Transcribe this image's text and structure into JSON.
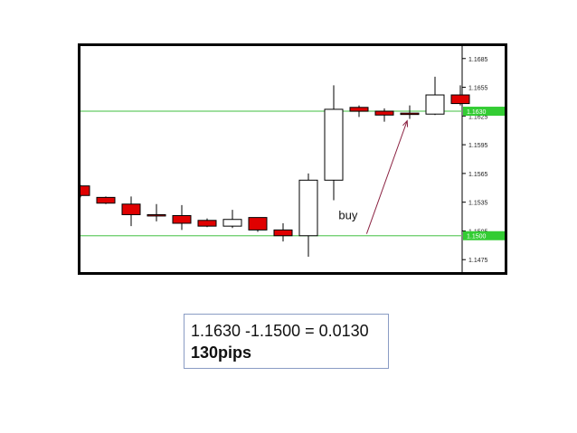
{
  "chart_data": {
    "type": "candlestick",
    "instrument": "",
    "ylim": [
      1.1462,
      1.1698
    ],
    "y_ticks": [
      "1.1685",
      "1.1655",
      "1.1625",
      "1.1595",
      "1.1565",
      "1.1535",
      "1.1505",
      "1.1475"
    ],
    "y_tick_values": [
      1.1685,
      1.1655,
      1.1625,
      1.1595,
      1.1565,
      1.1535,
      1.1505,
      1.1475
    ],
    "candles": [
      {
        "open": 1.1552,
        "high": 1.1553,
        "low": 1.154,
        "close": 1.1542
      },
      {
        "open": 1.154,
        "high": 1.1541,
        "low": 1.1533,
        "close": 1.1534
      },
      {
        "open": 1.1533,
        "high": 1.1541,
        "low": 1.151,
        "close": 1.1522
      },
      {
        "open": 1.1522,
        "high": 1.1533,
        "low": 1.1515,
        "close": 1.1521
      },
      {
        "open": 1.1521,
        "high": 1.1532,
        "low": 1.1506,
        "close": 1.1513
      },
      {
        "open": 1.1516,
        "high": 1.1518,
        "low": 1.1509,
        "close": 1.151
      },
      {
        "open": 1.151,
        "high": 1.1527,
        "low": 1.1508,
        "close": 1.1517
      },
      {
        "open": 1.1519,
        "high": 1.1519,
        "low": 1.1504,
        "close": 1.1506
      },
      {
        "open": 1.1506,
        "high": 1.1513,
        "low": 1.1494,
        "close": 1.15
      },
      {
        "open": 1.15,
        "high": 1.1565,
        "low": 1.1478,
        "close": 1.1558
      },
      {
        "open": 1.1558,
        "high": 1.1657,
        "low": 1.1537,
        "close": 1.1632
      },
      {
        "open": 1.1634,
        "high": 1.1636,
        "low": 1.1624,
        "close": 1.163
      },
      {
        "open": 1.163,
        "high": 1.1633,
        "low": 1.1619,
        "close": 1.1626
      },
      {
        "open": 1.1628,
        "high": 1.1636,
        "low": 1.1622,
        "close": 1.1627
      },
      {
        "open": 1.1627,
        "high": 1.1666,
        "low": 1.1626,
        "close": 1.1647
      },
      {
        "open": 1.1647,
        "high": 1.1657,
        "low": 1.1636,
        "close": 1.1638
      }
    ],
    "bullish_color": "#ffffff",
    "bearish_color": "#e00000",
    "horizontal_lines": [
      {
        "value": 1.163,
        "label": "1.1630",
        "color": "#66cc66"
      },
      {
        "value": 1.15,
        "label": "1.1500",
        "color": "#66cc66"
      }
    ],
    "annotation": {
      "text": "buy",
      "arrow_from": {
        "candle": 11.3,
        "price": 1.1502
      },
      "arrow_to": {
        "candle": 12.9,
        "price": 1.162
      },
      "arrow_color": "#8a2040"
    },
    "grid": false
  },
  "calc": {
    "line1": "1.1630 -1.1500 = 0.0130",
    "line2": "130pips"
  }
}
